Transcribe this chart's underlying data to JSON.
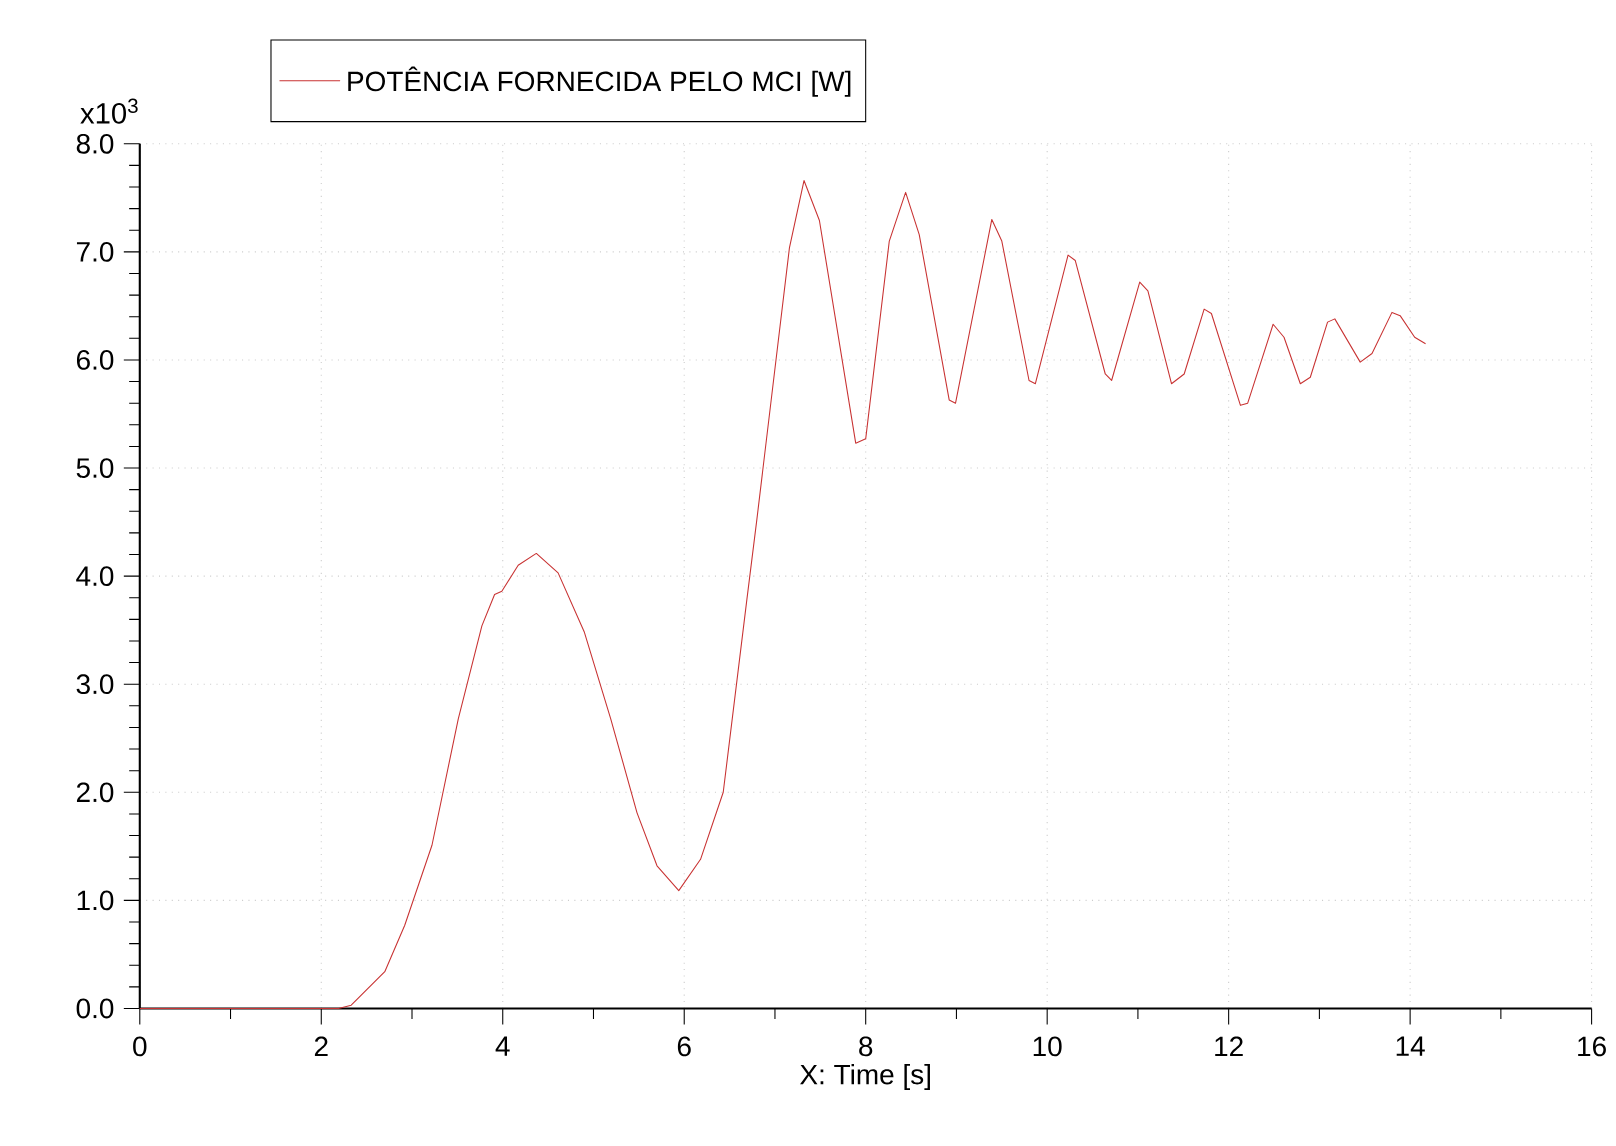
{
  "chart_data": {
    "type": "line",
    "xlabel": "X: Time [s]",
    "ylabel": "x10$^{3}$",
    "xlim": [
      0,
      16
    ],
    "xticks": [
      0,
      2,
      4,
      6,
      8,
      10,
      12,
      14,
      16
    ],
    "ylim": [
      0,
      8
    ],
    "yticks": [
      {
        "value": 0,
        "label": "0.0"
      },
      {
        "value": 1,
        "label": "1.0"
      },
      {
        "value": 2,
        "label": "2.0"
      },
      {
        "value": 3,
        "label": "3.0"
      },
      {
        "value": 4,
        "label": "4.0"
      },
      {
        "value": 5,
        "label": "5.0"
      },
      {
        "value": 6,
        "label": "6.0"
      },
      {
        "value": 7,
        "label": "7.0"
      },
      {
        "value": 8,
        "label": "8.0"
      }
    ],
    "grid": true,
    "legend": "top left",
    "marker": "none",
    "line_style": "solid",
    "series": [
      {
        "name": "POTÊNCIA FORNECIDA PELO MCI [W]",
        "color": "#c83232",
        "x": [
          0,
          2.19,
          2.33,
          2.7,
          2.92,
          3.22,
          3.51,
          3.77,
          3.91,
          3.99,
          4.17,
          4.37,
          4.61,
          4.9,
          5.19,
          5.48,
          5.7,
          5.94,
          6.18,
          6.43,
          6.69,
          6.8,
          7.16,
          7.32,
          7.49,
          7.89,
          8.0,
          8.26,
          8.44,
          8.59,
          8.92,
          8.99,
          9.39,
          9.5,
          9.8,
          9.87,
          10.23,
          10.31,
          10.64,
          10.71,
          11.02,
          11.11,
          11.37,
          11.51,
          11.73,
          11.81,
          12.13,
          12.21,
          12.49,
          12.61,
          12.79,
          12.9,
          13.09,
          13.17,
          13.45,
          13.58,
          13.8,
          13.89,
          14.05,
          14.17
        ],
        "values": [
          0,
          0,
          0.03,
          0.34,
          0.77,
          1.51,
          2.68,
          3.54,
          3.83,
          3.86,
          4.1,
          4.21,
          4.03,
          3.48,
          2.68,
          1.81,
          1.32,
          1.09,
          1.38,
          2.0,
          3.78,
          4.52,
          7.04,
          7.66,
          7.29,
          5.23,
          5.27,
          7.1,
          7.55,
          7.16,
          5.63,
          5.6,
          7.3,
          7.1,
          5.81,
          5.78,
          6.97,
          6.92,
          5.87,
          5.81,
          6.72,
          6.64,
          5.78,
          5.87,
          6.47,
          6.43,
          5.58,
          5.6,
          6.33,
          6.21,
          5.78,
          5.84,
          6.35,
          6.38,
          5.98,
          6.06,
          6.44,
          6.41,
          6.21,
          6.15
        ]
      }
    ]
  }
}
